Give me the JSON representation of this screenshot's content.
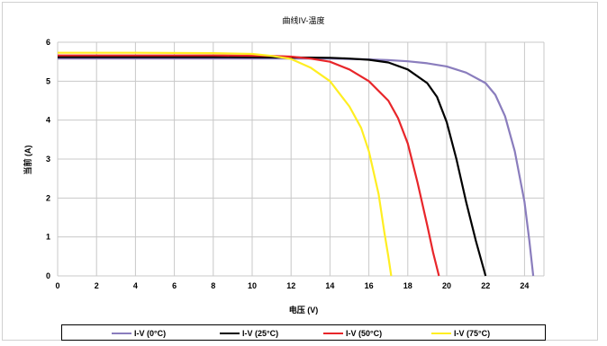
{
  "chart_data": {
    "type": "line",
    "title": "曲线IV-温度",
    "xlabel": "电压 (V)",
    "ylabel": "当前 (A)",
    "xlim": [
      0,
      25
    ],
    "ylim": [
      0,
      6
    ],
    "xticks": [
      "0",
      "2",
      "4",
      "6",
      "8",
      "10",
      "12",
      "14",
      "16",
      "18",
      "20",
      "22",
      "24"
    ],
    "yticks": [
      "0",
      "1",
      "2",
      "3",
      "4",
      "5",
      "6"
    ],
    "grid": true,
    "legend_position": "bottom",
    "series": [
      {
        "name": "I-V (0°C)",
        "color": "#8a7dbd",
        "points": [
          [
            0,
            5.58
          ],
          [
            4,
            5.58
          ],
          [
            8,
            5.58
          ],
          [
            12,
            5.58
          ],
          [
            14,
            5.58
          ],
          [
            16,
            5.56
          ],
          [
            17,
            5.54
          ],
          [
            18,
            5.51
          ],
          [
            19,
            5.46
          ],
          [
            20,
            5.38
          ],
          [
            21,
            5.22
          ],
          [
            22,
            4.95
          ],
          [
            22.5,
            4.65
          ],
          [
            23,
            4.1
          ],
          [
            23.5,
            3.2
          ],
          [
            24,
            1.9
          ],
          [
            24.25,
            0.9
          ],
          [
            24.45,
            0
          ]
        ]
      },
      {
        "name": "I-V (25°C)",
        "color": "#000000",
        "points": [
          [
            0,
            5.62
          ],
          [
            4,
            5.62
          ],
          [
            8,
            5.62
          ],
          [
            12,
            5.61
          ],
          [
            14,
            5.6
          ],
          [
            15,
            5.58
          ],
          [
            16,
            5.55
          ],
          [
            17,
            5.48
          ],
          [
            18,
            5.3
          ],
          [
            19,
            4.95
          ],
          [
            19.5,
            4.6
          ],
          [
            20,
            3.95
          ],
          [
            20.5,
            3.0
          ],
          [
            21,
            1.9
          ],
          [
            21.5,
            0.9
          ],
          [
            22,
            0
          ]
        ]
      },
      {
        "name": "I-V (50°C)",
        "color": "#e8262a",
        "points": [
          [
            0,
            5.66
          ],
          [
            4,
            5.66
          ],
          [
            8,
            5.66
          ],
          [
            11,
            5.65
          ],
          [
            12,
            5.63
          ],
          [
            13,
            5.58
          ],
          [
            14,
            5.5
          ],
          [
            15,
            5.3
          ],
          [
            16,
            5.0
          ],
          [
            17,
            4.5
          ],
          [
            17.5,
            4.05
          ],
          [
            18,
            3.4
          ],
          [
            18.5,
            2.4
          ],
          [
            19,
            1.3
          ],
          [
            19.3,
            0.6
          ],
          [
            19.6,
            0
          ]
        ]
      },
      {
        "name": "I-V (75°C)",
        "color": "#ffee22",
        "points": [
          [
            0,
            5.73
          ],
          [
            4,
            5.73
          ],
          [
            8,
            5.72
          ],
          [
            10,
            5.7
          ],
          [
            11,
            5.65
          ],
          [
            12,
            5.57
          ],
          [
            13,
            5.35
          ],
          [
            14,
            5.0
          ],
          [
            15,
            4.35
          ],
          [
            15.6,
            3.8
          ],
          [
            16,
            3.2
          ],
          [
            16.5,
            2.1
          ],
          [
            16.8,
            1.1
          ],
          [
            17,
            0.5
          ],
          [
            17.15,
            0
          ]
        ]
      }
    ]
  }
}
